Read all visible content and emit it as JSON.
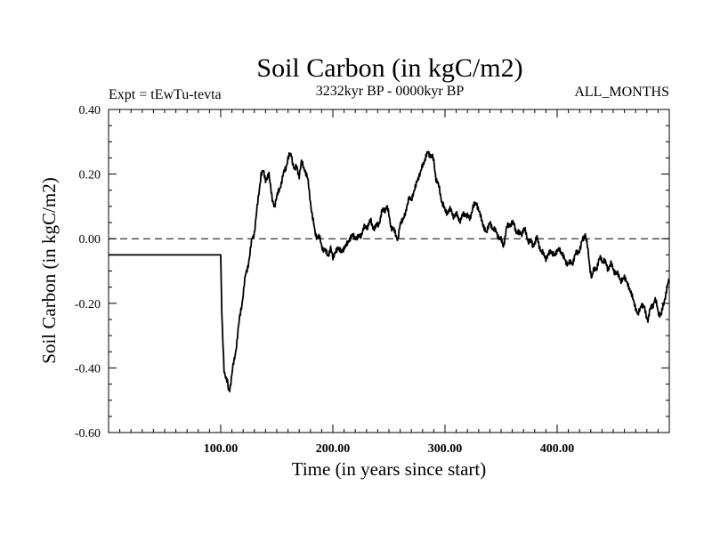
{
  "chart_data": {
    "type": "line",
    "title": "Soil Carbon (in kgC/m2)",
    "subtitle_left": "Expt = tEwTu-tevta",
    "subtitle_center": "3232kyr BP - 0000kyr BP",
    "subtitle_right": "ALL_MONTHS",
    "xlabel": "Time (in years since start)",
    "ylabel": "Soil Carbon (in kgC/m2)",
    "xlim": [
      0,
      500
    ],
    "ylim": [
      -0.6,
      0.4
    ],
    "x_ticks": [
      100,
      200,
      300,
      400
    ],
    "x_tick_labels": [
      "100.00",
      "200.00",
      "300.00",
      "400.00"
    ],
    "y_ticks": [
      -0.6,
      -0.4,
      -0.2,
      0.0,
      0.2,
      0.4
    ],
    "y_tick_labels": [
      "-0.60",
      "-0.40",
      "-0.20",
      "0.00",
      "0.20",
      "0.40"
    ],
    "reference_line": 0.0,
    "series": [
      {
        "name": "Soil Carbon",
        "color": "#000000",
        "x": [
          0,
          98,
          100,
          101,
          103,
          105,
          106,
          107,
          108,
          110,
          112,
          115,
          118,
          122,
          126,
          128,
          130,
          132,
          134,
          136,
          138,
          140,
          143,
          146,
          148,
          150,
          153,
          156,
          158,
          160,
          163,
          166,
          168,
          170,
          172,
          175,
          178,
          180,
          182,
          184,
          186,
          188,
          190,
          193,
          196,
          198,
          200,
          202,
          205,
          208,
          212,
          215,
          218,
          222,
          226,
          230,
          234,
          238,
          242,
          245,
          248,
          250,
          252,
          255,
          258,
          260,
          262,
          265,
          268,
          270,
          272,
          275,
          278,
          280,
          283,
          285,
          287,
          290,
          292,
          295,
          298,
          300,
          303,
          306,
          310,
          314,
          318,
          322,
          325,
          328,
          331,
          334,
          337,
          340,
          343,
          346,
          349,
          352,
          355,
          358,
          362,
          366,
          370,
          374,
          378,
          382,
          386,
          390,
          394,
          398,
          402,
          406,
          410,
          414,
          418,
          421,
          423,
          425,
          427,
          429,
          431,
          433,
          436,
          439,
          442,
          445,
          448,
          451,
          454,
          457,
          460,
          463,
          466,
          469,
          472,
          475,
          478,
          481,
          484,
          487,
          490,
          493,
          496,
          500
        ],
        "y": [
          -0.05,
          -0.05,
          -0.05,
          -0.24,
          -0.4,
          -0.44,
          -0.45,
          -0.47,
          -0.46,
          -0.42,
          -0.38,
          -0.3,
          -0.22,
          -0.12,
          -0.05,
          0.0,
          0.02,
          0.08,
          0.14,
          0.2,
          0.21,
          0.18,
          0.2,
          0.12,
          0.1,
          0.13,
          0.16,
          0.2,
          0.22,
          0.25,
          0.26,
          0.21,
          0.22,
          0.2,
          0.23,
          0.22,
          0.17,
          0.12,
          0.06,
          0.02,
          0.01,
          0.0,
          -0.02,
          -0.04,
          -0.05,
          -0.03,
          -0.06,
          -0.04,
          -0.03,
          -0.04,
          -0.02,
          0.0,
          0.01,
          0.0,
          0.02,
          0.04,
          0.05,
          0.03,
          0.06,
          0.09,
          0.1,
          0.07,
          0.04,
          0.02,
          0.0,
          0.04,
          0.06,
          0.08,
          0.13,
          0.12,
          0.14,
          0.18,
          0.2,
          0.23,
          0.25,
          0.27,
          0.26,
          0.24,
          0.19,
          0.15,
          0.11,
          0.08,
          0.09,
          0.08,
          0.07,
          0.06,
          0.08,
          0.06,
          0.1,
          0.11,
          0.08,
          0.04,
          0.02,
          0.05,
          0.03,
          0.02,
          0.0,
          -0.02,
          0.03,
          0.05,
          0.04,
          0.01,
          0.03,
          0.0,
          -0.02,
          0.0,
          -0.04,
          -0.06,
          -0.04,
          -0.05,
          -0.03,
          -0.06,
          -0.08,
          -0.07,
          -0.04,
          -0.03,
          0.0,
          0.02,
          -0.03,
          -0.08,
          -0.12,
          -0.1,
          -0.08,
          -0.06,
          -0.07,
          -0.09,
          -0.08,
          -0.1,
          -0.11,
          -0.13,
          -0.12,
          -0.14,
          -0.17,
          -0.2,
          -0.24,
          -0.2,
          -0.22,
          -0.25,
          -0.21,
          -0.19,
          -0.22,
          -0.24,
          -0.18,
          -0.13
        ]
      }
    ]
  }
}
